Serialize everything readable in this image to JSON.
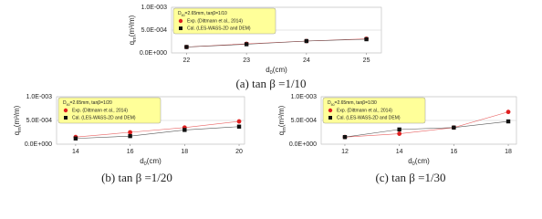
{
  "chart_data": [
    {
      "type": "line",
      "caption": "(a) tan β =1/10",
      "legend_title": [
        "D",
        "50",
        "=2.65mm, tanβ=1/10"
      ],
      "xlabel": [
        "d",
        "0",
        "(cm)"
      ],
      "ylabel": [
        "q",
        "m",
        "(m³/m)"
      ],
      "x": [
        22,
        23,
        24,
        25
      ],
      "xlim": [
        21.75,
        25.25
      ],
      "xticks": [
        22,
        23,
        24,
        25
      ],
      "ylim": [
        0,
        0.001
      ],
      "yticks": [
        {
          "value": 0,
          "label": "0.0E+000"
        },
        {
          "value": 0.0005,
          "label": "5.0E-004"
        },
        {
          "value": 0.001,
          "label": "1.0E-003"
        }
      ],
      "grid": true,
      "series": [
        {
          "name": "Exp. (Dittmann et al., 2014)",
          "color": "#e02020",
          "marker": "circle",
          "values": [
            0.00013,
            0.0002,
            0.00026,
            0.00031
          ]
        },
        {
          "name": "Cal. (LES-WASS-2D and DEM)",
          "color": "#111111",
          "marker": "square",
          "values": [
            0.00013,
            0.00019,
            0.00026,
            0.0003
          ]
        }
      ]
    },
    {
      "type": "line",
      "caption": "(b) tan β =1/20",
      "legend_title": [
        "D",
        "50",
        "=2.65mm, tanβ=1/20"
      ],
      "xlabel": [
        "d",
        "0",
        "(cm)"
      ],
      "ylabel": [
        "q",
        "m",
        "(m³/m)"
      ],
      "x": [
        14,
        16,
        18,
        20
      ],
      "xlim": [
        13.3,
        20.2
      ],
      "xticks": [
        14,
        16,
        18,
        20
      ],
      "ylim": [
        0,
        0.001
      ],
      "yticks": [
        {
          "value": 0,
          "label": "0.0E+000"
        },
        {
          "value": 0.0005,
          "label": "5.0E-004"
        },
        {
          "value": 0.001,
          "label": "1.0E-003"
        }
      ],
      "grid": true,
      "series": [
        {
          "name": "Exp. (Dittmann et al., 2014)",
          "color": "#e02020",
          "marker": "circle",
          "values": [
            0.00015,
            0.00025,
            0.00035,
            0.00048
          ]
        },
        {
          "name": "Cal. (LES-WASS-2D and DEM)",
          "color": "#111111",
          "marker": "square",
          "values": [
            0.00012,
            0.00017,
            0.0003,
            0.00037
          ]
        }
      ]
    },
    {
      "type": "line",
      "caption": "(c) tan β =1/30",
      "legend_title": [
        "D",
        "50",
        "=2.65mm, tanβ=1/30"
      ],
      "xlabel": [
        "d",
        "0",
        "(cm)"
      ],
      "ylabel": [
        "q",
        "m",
        "(m³/m)"
      ],
      "x": [
        12,
        14,
        16,
        18
      ],
      "xlim": [
        11.13,
        18.3
      ],
      "xticks": [
        12,
        14,
        16,
        18
      ],
      "ylim": [
        0,
        0.001
      ],
      "yticks": [
        {
          "value": 0,
          "label": "0.0E+000"
        },
        {
          "value": 0.0005,
          "label": "5.0E-004"
        },
        {
          "value": 0.001,
          "label": "1.0E-003"
        }
      ],
      "grid": true,
      "series": [
        {
          "name": "Exp. (Dittmann et al., 2014)",
          "color": "#e02020",
          "marker": "circle",
          "values": [
            0.00015,
            0.00022,
            0.00035,
            0.00068
          ]
        },
        {
          "name": "Cal. (LES-WASS-2D and DEM)",
          "color": "#111111",
          "marker": "square",
          "values": [
            0.00015,
            0.00031,
            0.00035,
            0.00048
          ]
        }
      ]
    }
  ]
}
